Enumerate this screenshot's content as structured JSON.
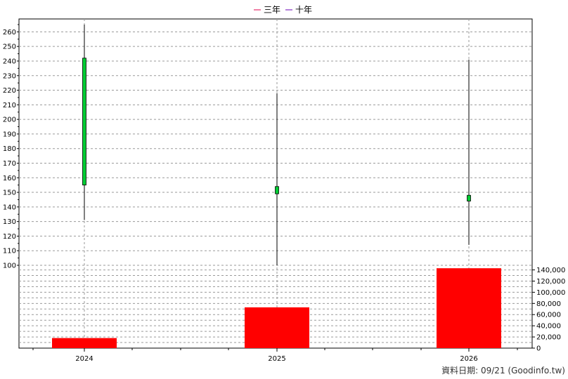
{
  "chart_data": {
    "type": "candlestick+bar",
    "legend": [
      {
        "name": "三年",
        "color": "#e0004d"
      },
      {
        "name": "十年",
        "color": "#6a00b5"
      }
    ],
    "legend_position": "top-center",
    "categories": [
      "2024",
      "2025",
      "2026"
    ],
    "price": {
      "ylim": [
        100,
        265
      ],
      "ticks": [
        100,
        110,
        120,
        130,
        140,
        150,
        160,
        170,
        180,
        190,
        200,
        210,
        220,
        230,
        240,
        250,
        260
      ],
      "candles": [
        {
          "x": "2024",
          "open": 155,
          "close": 242,
          "high": 265,
          "low": 131
        },
        {
          "x": "2025",
          "open": 149,
          "close": 154,
          "high": 218,
          "low": 100
        },
        {
          "x": "2026",
          "open": 144,
          "close": 148,
          "high": 241,
          "low": 114
        }
      ],
      "color": "#00cc33"
    },
    "volume": {
      "ylim": [
        0,
        140000
      ],
      "ticks": [
        0,
        20000,
        40000,
        60000,
        80000,
        100000,
        120000,
        140000
      ],
      "tick_labels": [
        "0",
        "20,000",
        "40,000",
        "60,000",
        "80,000",
        "100,000",
        "120,000",
        "140,000"
      ],
      "values": [
        18000,
        73000,
        143000
      ],
      "color": "#ff0000"
    },
    "grid": true
  },
  "footer": {
    "text": "資料日期: 09/21  (Goodinfo.tw)"
  }
}
